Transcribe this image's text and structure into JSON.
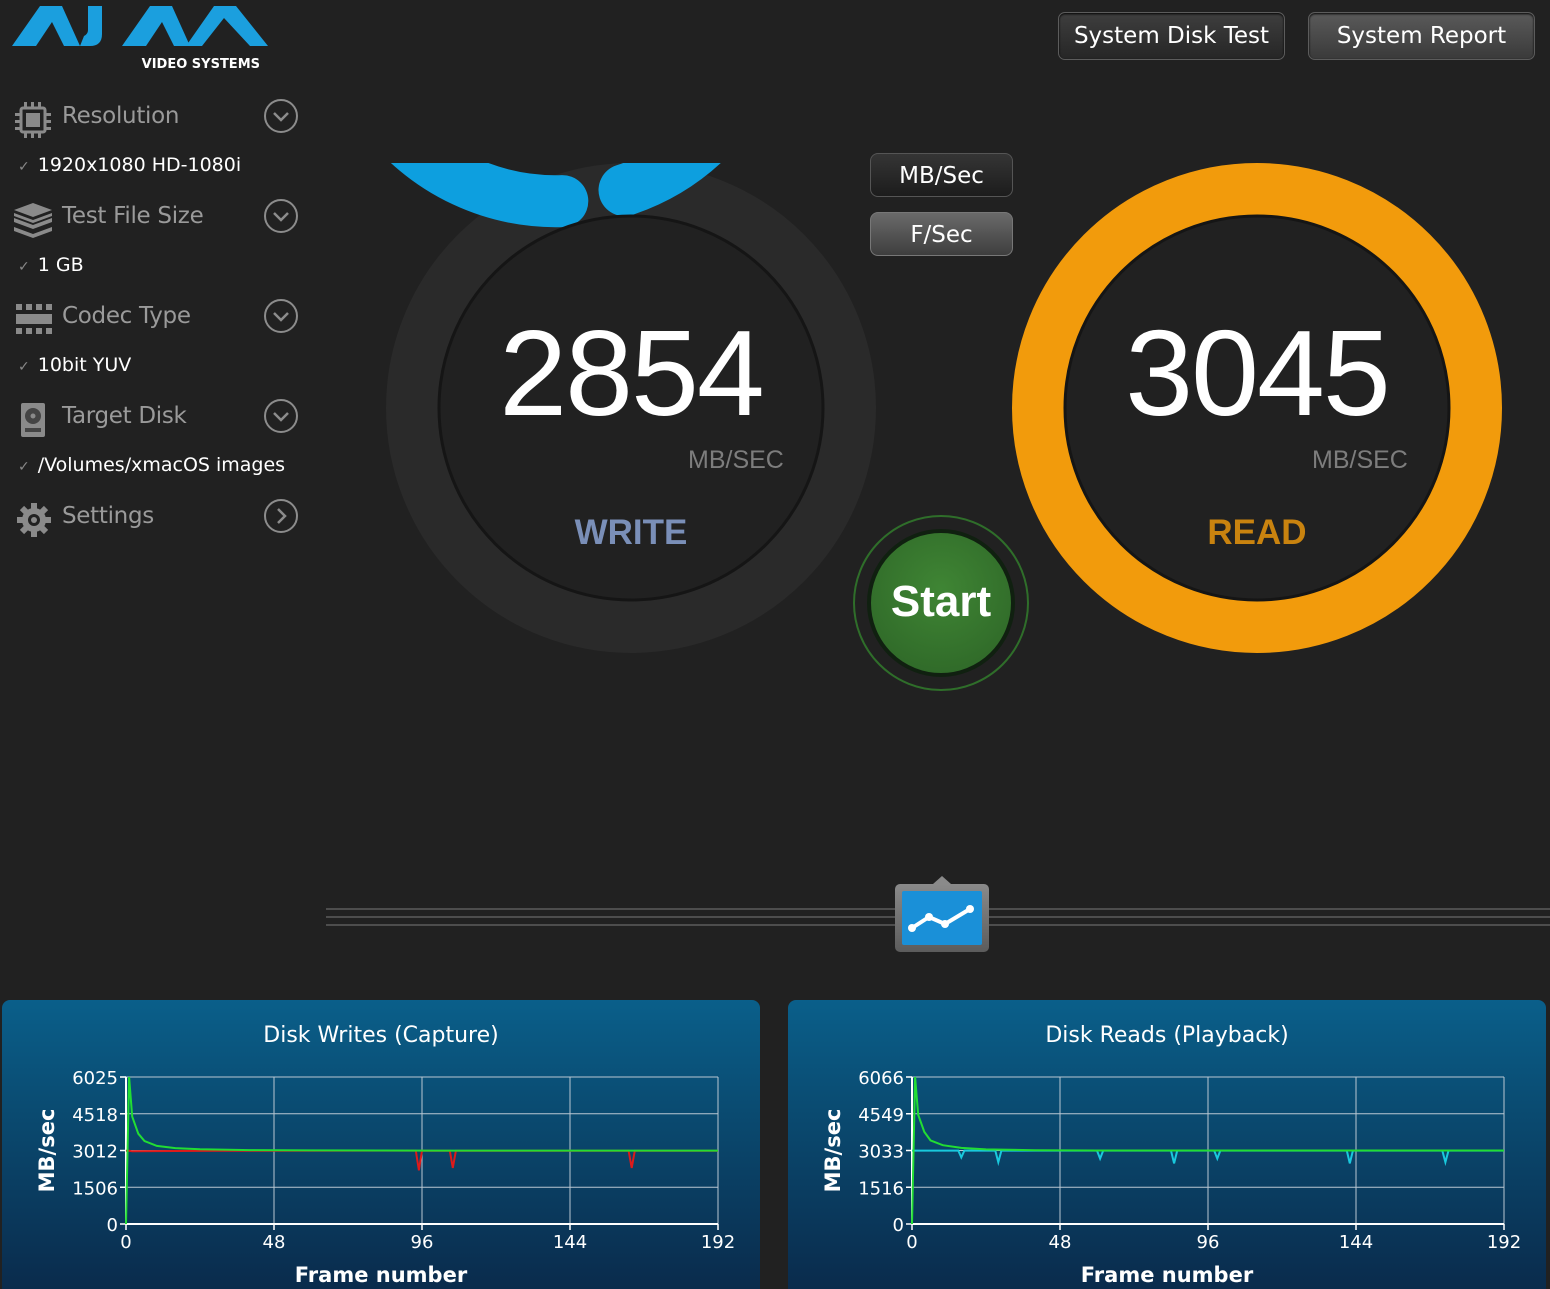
{
  "logo": {
    "brand": "AJA",
    "subtitle": "VIDEO SYSTEMS"
  },
  "toolbar": {
    "disk_test_label": "System Disk Test",
    "report_label": "System Report"
  },
  "sidebar": {
    "items": [
      {
        "label": "Resolution",
        "value": "1920x1080 HD-1080i",
        "icon": "chip-icon"
      },
      {
        "label": "Test File Size",
        "value": "1 GB",
        "icon": "layers-icon"
      },
      {
        "label": "Codec Type",
        "value": "10bit YUV",
        "icon": "grid-icon"
      },
      {
        "label": "Target Disk",
        "value": "/Volumes/xmacOS images",
        "icon": "disk-icon"
      },
      {
        "label": "Settings",
        "icon": "gear-icon"
      }
    ]
  },
  "units": {
    "mbsec_label": "MB/Sec",
    "fsec_label": "F/Sec"
  },
  "write_gauge": {
    "value": "2854",
    "unit": "MB/SEC",
    "label": "WRITE",
    "color": "#0d9fdf",
    "label_color": "#7a8fb8"
  },
  "read_gauge": {
    "value": "3045",
    "unit": "MB/SEC",
    "label": "READ",
    "color": "#f29b0c",
    "label_color": "#c9830f"
  },
  "start_label": "Start",
  "chart_data": [
    {
      "type": "line",
      "title": "Disk Writes (Capture)",
      "xlabel": "Frame number",
      "ylabel": "MB/sec",
      "xlim": [
        0,
        192
      ],
      "ylim": [
        0,
        6025
      ],
      "x_ticks": [
        "0",
        "48",
        "96",
        "144",
        "192"
      ],
      "y_ticks": [
        "0",
        "1506",
        "3012",
        "4518",
        "6025"
      ],
      "grid": true,
      "series": [
        {
          "color": "#22dd33",
          "x": [
            0,
            1,
            2,
            4,
            6,
            10,
            16,
            24,
            40,
            60,
            100,
            192
          ],
          "values": [
            0,
            6025,
            4400,
            3700,
            3400,
            3200,
            3110,
            3060,
            3030,
            3015,
            3010,
            3010
          ]
        },
        {
          "color": "#dd1a1a",
          "x": [
            0,
            1,
            2,
            30,
            94,
            95,
            96,
            105,
            106,
            107,
            163,
            164,
            165,
            192
          ],
          "values": [
            3000,
            3000,
            2980,
            3000,
            3010,
            2200,
            3010,
            3005,
            2300,
            3005,
            3005,
            2300,
            3005,
            3000
          ]
        }
      ]
    },
    {
      "type": "line",
      "title": "Disk Reads (Playback)",
      "xlabel": "Frame number",
      "ylabel": "MB/sec",
      "xlim": [
        0,
        192
      ],
      "ylim": [
        0,
        6066
      ],
      "x_ticks": [
        "0",
        "48",
        "96",
        "144",
        "192"
      ],
      "y_ticks": [
        "0",
        "1516",
        "3033",
        "4549",
        "6066"
      ],
      "grid": true,
      "series": [
        {
          "color": "#22dd33",
          "x": [
            0,
            1,
            2,
            4,
            6,
            10,
            16,
            24,
            40,
            60,
            100,
            192
          ],
          "values": [
            0,
            6066,
            4500,
            3800,
            3450,
            3250,
            3140,
            3080,
            3045,
            3035,
            3033,
            3033
          ]
        },
        {
          "color": "#19c9dd",
          "x": [
            0,
            1,
            2,
            15,
            16,
            17,
            27,
            28,
            29,
            60,
            61,
            62,
            84,
            85,
            86,
            98,
            99,
            100,
            141,
            142,
            143,
            172,
            173,
            174,
            192
          ],
          "values": [
            3030,
            3030,
            3030,
            3030,
            2750,
            3030,
            3030,
            2550,
            3030,
            3030,
            2700,
            3030,
            3030,
            2500,
            3030,
            3030,
            2700,
            3030,
            3030,
            2500,
            3030,
            3030,
            2550,
            3030,
            3030
          ]
        }
      ]
    }
  ]
}
